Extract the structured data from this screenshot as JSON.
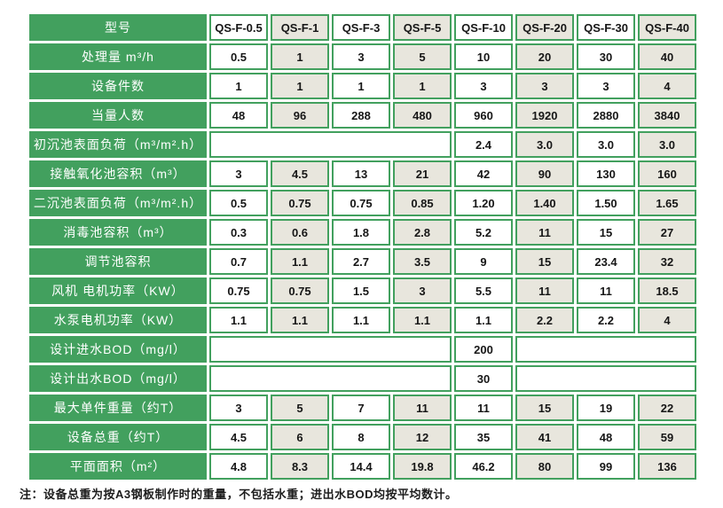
{
  "colors": {
    "green": "#42a05e",
    "shaded_cell": "#e8e6dd",
    "cell_background": "#ffffff",
    "text": "#161616"
  },
  "table": {
    "header": {
      "label": "型号",
      "models": [
        "QS-F-0.5",
        "QS-F-1",
        "QS-F-3",
        "QS-F-5",
        "QS-F-10",
        "QS-F-20",
        "QS-F-30",
        "QS-F-40"
      ]
    },
    "rows": [
      {
        "label": "处理量 m³/h",
        "cells": [
          "0.5",
          "1",
          "3",
          "5",
          "10",
          "20",
          "30",
          "40"
        ]
      },
      {
        "label": "设备件数",
        "cells": [
          "1",
          "1",
          "1",
          "1",
          "3",
          "3",
          "3",
          "4"
        ]
      },
      {
        "label": "当量人数",
        "cells": [
          "48",
          "96",
          "288",
          "480",
          "960",
          "1920",
          "2880",
          "3840"
        ]
      },
      {
        "label": "初沉池表面负荷（m³/m².h）",
        "cells": [
          {
            "text": "",
            "span": 4
          },
          "2.4",
          "3.0",
          "3.0",
          "3.0"
        ]
      },
      {
        "label": "接触氧化池容积（m³）",
        "cells": [
          "3",
          "4.5",
          "13",
          "21",
          "42",
          "90",
          "130",
          "160"
        ]
      },
      {
        "label": "二沉池表面负荷（m³/m².h）",
        "cells": [
          "0.5",
          "0.75",
          "0.75",
          "0.85",
          "1.20",
          "1.40",
          "1.50",
          "1.65"
        ]
      },
      {
        "label": "消毒池容积（m³）",
        "cells": [
          "0.3",
          "0.6",
          "1.8",
          "2.8",
          "5.2",
          "11",
          "15",
          "27"
        ]
      },
      {
        "label": "调节池容积",
        "cells": [
          "0.7",
          "1.1",
          "2.7",
          "3.5",
          "9",
          "15",
          "23.4",
          "32"
        ]
      },
      {
        "label": "风机 电机功率（KW）",
        "cells": [
          "0.75",
          "0.75",
          "1.5",
          "3",
          "5.5",
          "11",
          "11",
          "18.5"
        ]
      },
      {
        "label": "水泵电机功率（KW）",
        "cells": [
          "1.1",
          "1.1",
          "1.1",
          "1.1",
          "1.1",
          "2.2",
          "2.2",
          "4"
        ]
      },
      {
        "label": "设计进水BOD（mg/l）",
        "cells": [
          {
            "text": "",
            "span": 4
          },
          "200",
          {
            "text": "",
            "span": 3
          }
        ]
      },
      {
        "label": "设计出水BOD（mg/l）",
        "cells": [
          {
            "text": "",
            "span": 4
          },
          "30",
          {
            "text": "",
            "span": 3
          }
        ]
      },
      {
        "label": "最大单件重量（约T）",
        "cells": [
          "3",
          "5",
          "7",
          "11",
          "11",
          "15",
          "19",
          "22"
        ]
      },
      {
        "label": "设备总重（约T）",
        "cells": [
          "4.5",
          "6",
          "8",
          "12",
          "35",
          "41",
          "48",
          "59"
        ]
      },
      {
        "label": "平面面积（m²）",
        "cells": [
          "4.8",
          "8.3",
          "14.4",
          "19.8",
          "46.2",
          "80",
          "99",
          "136"
        ]
      }
    ]
  },
  "footnote": "注：设备总重为按A3钢板制作时的重量，不包括水重；进出水BOD均按平均数计。"
}
